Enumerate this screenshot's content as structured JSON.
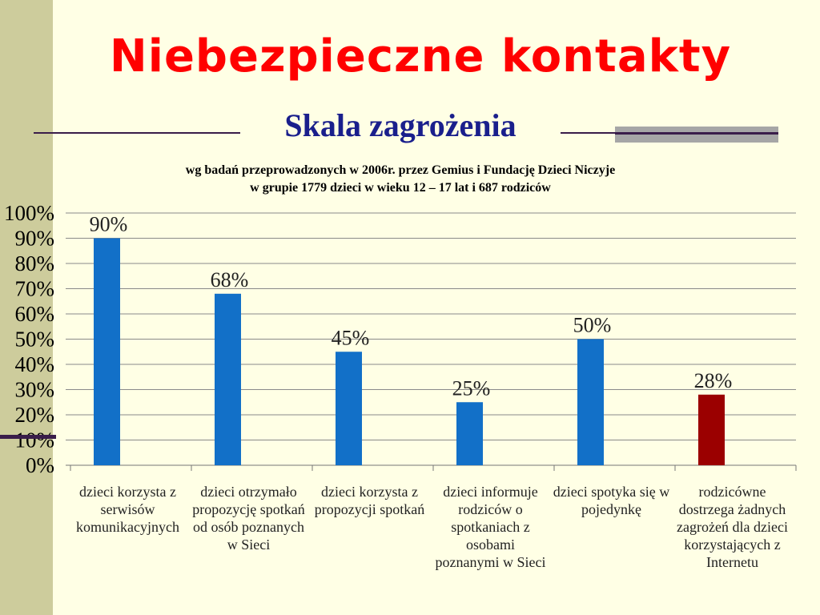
{
  "slide": {
    "title": "Niebezpieczne kontakty",
    "subtitle": "Skala zagrożenia",
    "note_line1": "wg badań przeprowadzonych w 2006r. przez Gemius i Fundację Dzieci Niczyje",
    "note_line2": "w grupie 1779 dzieci w wieku 12 – 17 lat  i 687 rodziców"
  },
  "colors": {
    "background": "#FFFFE5",
    "title": "#FF0000",
    "subtitle": "#1A1F8C",
    "bar_children": "#1270C8",
    "bar_parents": "#9B0000"
  },
  "chart_data": {
    "type": "bar",
    "categories": [
      "dzieci korzysta z serwisów komunikacyjnych",
      "dzieci otrzymało propozycję spotkań od osób poznanych w Sieci",
      "dzieci korzysta z propozycji spotkań",
      "dzieci informuje rodziców o spotkaniach z osobami poznanymi w Sieci",
      "dzieci spotyka się w pojedynkę",
      "rodzicówne dostrzega żadnych zagrożeń dla dzieci korzystających z Internetu"
    ],
    "category_lines": [
      [
        "dzieci korzysta z",
        "serwisów",
        "komunikacyjnych"
      ],
      [
        "dzieci otrzymało",
        "propozycję spotkań",
        "od osób poznanych",
        "w Sieci"
      ],
      [
        "dzieci korzysta z",
        "propozycji spotkań"
      ],
      [
        "dzieci informuje",
        "rodziców o",
        "spotkaniach z",
        "osobami",
        "poznanymi w Sieci"
      ],
      [
        "dzieci spotyka się w",
        "pojedynkę"
      ],
      [
        "rodzicówne",
        "dostrzega żadnych",
        "zagrożeń dla dzieci",
        "korzystających z",
        "Internetu"
      ]
    ],
    "values": [
      90,
      68,
      45,
      25,
      50,
      28
    ],
    "value_labels": [
      "90%",
      "68%",
      "45%",
      "25%",
      "50%",
      "28%"
    ],
    "bar_colors": [
      "#1270C8",
      "#1270C8",
      "#1270C8",
      "#1270C8",
      "#1270C8",
      "#9B0000"
    ],
    "y_ticks": [
      "0%",
      "10%",
      "20%",
      "30%",
      "40%",
      "50%",
      "60%",
      "70%",
      "80%",
      "90%",
      "100%"
    ],
    "ylim": [
      0,
      100
    ],
    "grid": true,
    "title": "",
    "xlabel": "",
    "ylabel": ""
  }
}
